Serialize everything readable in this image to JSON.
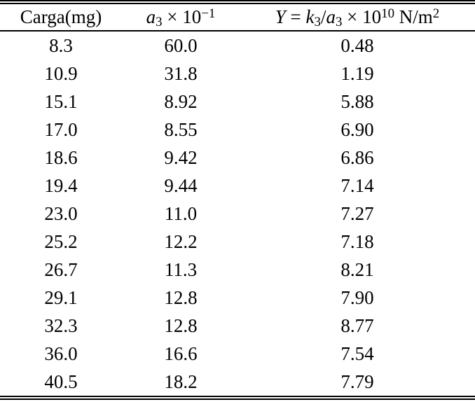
{
  "table": {
    "header": {
      "col1": {
        "label": "Carga(mg)"
      },
      "col2": {
        "var": "a",
        "var_sub": "3",
        "times10": " × 10",
        "exp": "−1"
      },
      "col3": {
        "y": "Y",
        "eq": " = ",
        "k": "k",
        "k_sub": "3",
        "slash": "/",
        "a": "a",
        "a_sub": "3",
        "times10": " × 10",
        "exp": "10",
        "unit": " N/m",
        "unit_exp": "2"
      }
    },
    "rows": [
      [
        "8.3",
        "60.0",
        "0.48"
      ],
      [
        "10.9",
        "31.8",
        "1.19"
      ],
      [
        "15.1",
        "8.92",
        "5.88"
      ],
      [
        "17.0",
        "8.55",
        "6.90"
      ],
      [
        "18.6",
        "9.42",
        "6.86"
      ],
      [
        "19.4",
        "9.44",
        "7.14"
      ],
      [
        "23.0",
        "11.0",
        "7.27"
      ],
      [
        "25.2",
        "12.2",
        "7.18"
      ],
      [
        "26.7",
        "11.3",
        "8.21"
      ],
      [
        "29.1",
        "12.8",
        "7.90"
      ],
      [
        "32.3",
        "12.8",
        "8.77"
      ],
      [
        "36.0",
        "16.6",
        "7.54"
      ],
      [
        "40.5",
        "18.2",
        "7.79"
      ]
    ]
  },
  "chart_data": {
    "type": "table",
    "title": "",
    "columns": [
      "Carga(mg)",
      "a3 × 10^−1",
      "Y = k3/a3 × 10^10 N/m^2"
    ],
    "rows": [
      [
        8.3,
        60.0,
        0.48
      ],
      [
        10.9,
        31.8,
        1.19
      ],
      [
        15.1,
        8.92,
        5.88
      ],
      [
        17.0,
        8.55,
        6.9
      ],
      [
        18.6,
        9.42,
        6.86
      ],
      [
        19.4,
        9.44,
        7.14
      ],
      [
        23.0,
        11.0,
        7.27
      ],
      [
        25.2,
        12.2,
        7.18
      ],
      [
        26.7,
        11.3,
        8.21
      ],
      [
        29.1,
        12.8,
        7.9
      ],
      [
        32.3,
        12.8,
        8.77
      ],
      [
        36.0,
        16.6,
        7.54
      ],
      [
        40.5,
        18.2,
        7.79
      ]
    ]
  }
}
